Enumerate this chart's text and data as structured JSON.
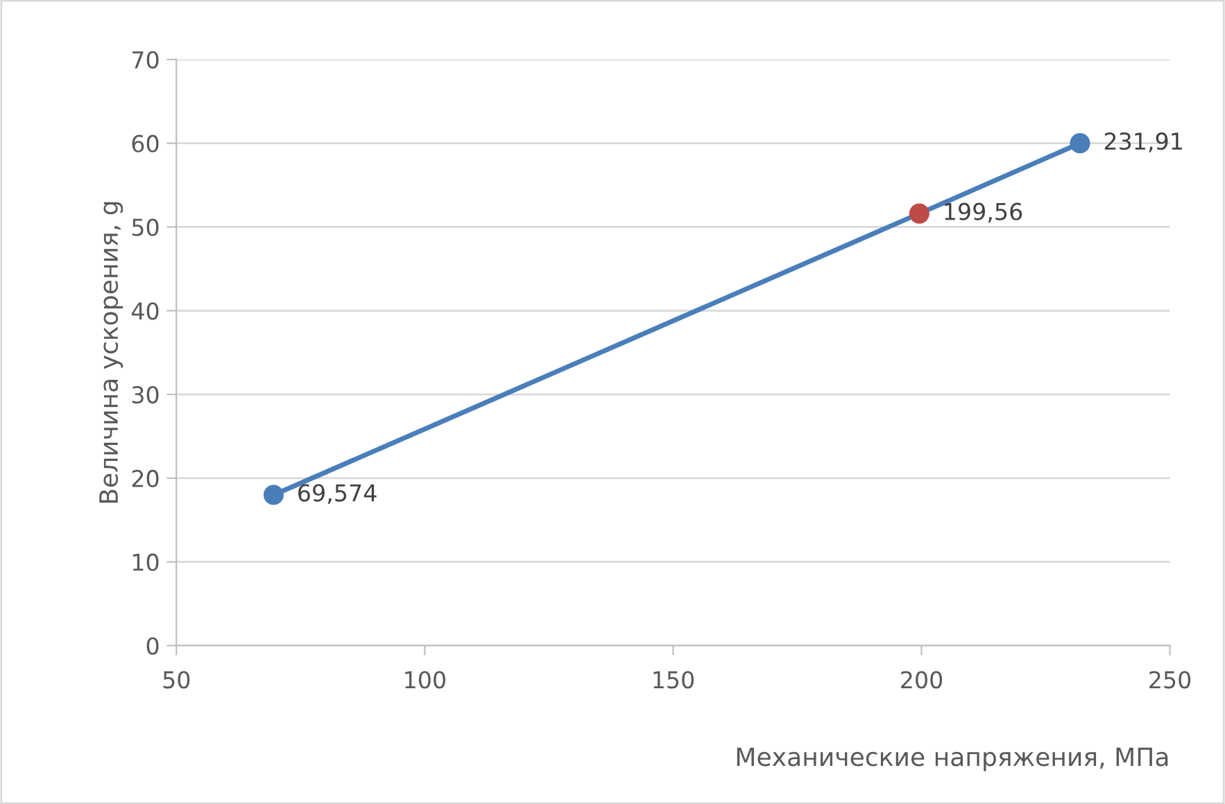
{
  "chart_data": {
    "type": "line",
    "xlabel": "Механические напряжения, МПа",
    "ylabel": "Величина ускорения, g",
    "x": [
      69.574,
      199.56,
      231.91
    ],
    "series": [
      {
        "color": "#4a7ebb",
        "values": [
          18,
          51.6,
          60
        ],
        "colors": [
          "#4a7ebb",
          "#be4b48",
          "#4a7ebb"
        ]
      }
    ],
    "annotations": [
      {
        "text": "69,574",
        "x": 69.574,
        "y": 18
      },
      {
        "text": "199,56",
        "x": 199.56,
        "y": 51.6
      },
      {
        "text": "231,91",
        "x": 231.91,
        "y": 60
      }
    ],
    "xlim": [
      50,
      250
    ],
    "xticks": [
      50,
      100,
      150,
      200,
      250
    ],
    "ylim": [
      0,
      70
    ],
    "yticks": [
      0,
      10,
      20,
      30,
      40,
      50,
      60,
      70
    ],
    "grid": "y",
    "marker": "circle",
    "line_style": "solid",
    "legend": false
  }
}
